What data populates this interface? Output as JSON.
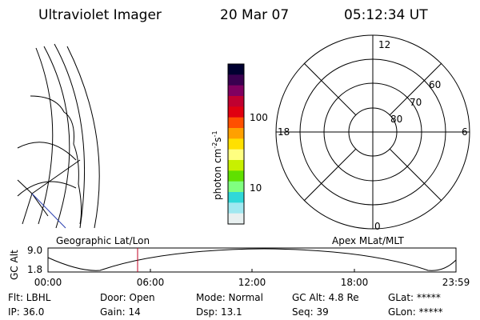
{
  "header": {
    "title": "Ultraviolet Imager",
    "date": "20 Mar 07",
    "time": "05:12:34 UT"
  },
  "colorbar": {
    "label": "photon cm",
    "exp1": "-2",
    "unit2": "s",
    "exp2": "-1",
    "ticks": [
      "100",
      "10"
    ]
  },
  "polar": {
    "mlt_labels": [
      "12",
      "18",
      "6",
      "0"
    ],
    "lat_labels": [
      "60",
      "70",
      "80"
    ]
  },
  "timeline": {
    "left_title": "Geographic Lat/Lon",
    "right_title": "Apex MLat/MLT",
    "y_label": "GC Alt",
    "y_ticks": [
      "9.0",
      "1.8"
    ],
    "x_ticks": [
      "00:00",
      "06:00",
      "12:00",
      "18:00",
      "23:59"
    ]
  },
  "footer": {
    "rows": [
      [
        "Flt: LBHL",
        "Door: Open",
        "Mode: Normal",
        "GC Alt: 4.8 Re",
        "GLat: *****"
      ],
      [
        "IP: 36.0",
        "Gain: 14",
        "Dsp: 13.1",
        "Seq: 39",
        "GLon: *****"
      ]
    ]
  }
}
